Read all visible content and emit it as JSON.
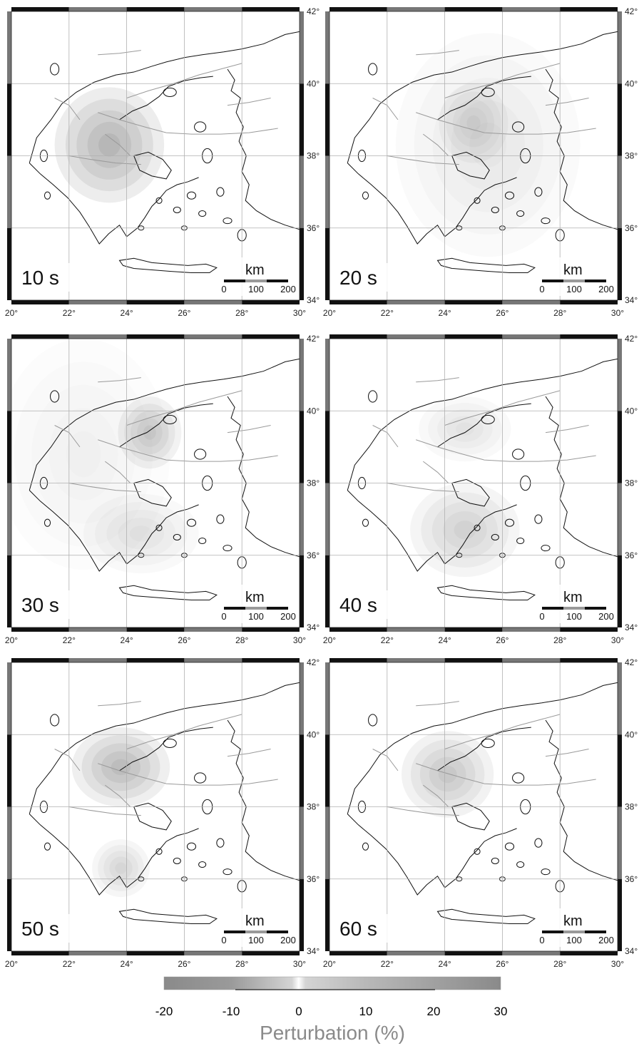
{
  "figure": {
    "lon_ticks": [
      "20°",
      "22°",
      "24°",
      "26°",
      "28°",
      "30°"
    ],
    "lat_ticks": [
      "34°",
      "36°",
      "38°",
      "40°",
      "42°"
    ],
    "extent": {
      "lon": [
        20,
        30
      ],
      "lat": [
        34,
        42
      ]
    },
    "scale_bar": {
      "unit": "km",
      "ticks": [
        "0",
        "100",
        "200"
      ]
    },
    "panels": [
      {
        "label": "10 s",
        "anomalies": [
          {
            "lon": 23.4,
            "lat": 38.3,
            "strength": 1.0,
            "rlon": 1.9,
            "rlat": 1.6
          }
        ]
      },
      {
        "label": "20 s",
        "anomalies": [
          {
            "lon": 25.0,
            "lat": 38.9,
            "strength": 0.45,
            "rlon": 1.2,
            "rlat": 1.1
          },
          {
            "lon": 25.5,
            "lat": 38.3,
            "strength": 0.25,
            "rlon": 3.2,
            "rlat": 3.1
          }
        ]
      },
      {
        "label": "30 s",
        "anomalies": [
          {
            "lon": 24.8,
            "lat": 39.4,
            "strength": 0.75,
            "rlon": 1.1,
            "rlat": 1.0
          },
          {
            "lon": 24.5,
            "lat": 36.6,
            "strength": 0.35,
            "rlon": 2.0,
            "rlat": 1.1
          },
          {
            "lon": 22.5,
            "lat": 38.8,
            "strength": 0.18,
            "rlon": 3.0,
            "rlat": 3.2
          }
        ]
      },
      {
        "label": "40 s",
        "anomalies": [
          {
            "lon": 24.7,
            "lat": 36.7,
            "strength": 0.6,
            "rlon": 1.9,
            "rlat": 1.3
          },
          {
            "lon": 24.7,
            "lat": 39.5,
            "strength": 0.35,
            "rlon": 1.6,
            "rlat": 0.9
          }
        ]
      },
      {
        "label": "50 s",
        "anomalies": [
          {
            "lon": 23.8,
            "lat": 39.1,
            "strength": 0.9,
            "rlon": 1.7,
            "rlat": 1.1
          },
          {
            "lon": 23.8,
            "lat": 36.3,
            "strength": 0.5,
            "rlon": 1.0,
            "rlat": 0.8
          }
        ]
      },
      {
        "label": "60 s",
        "anomalies": [
          {
            "lon": 24.1,
            "lat": 38.9,
            "strength": 0.75,
            "rlon": 1.6,
            "rlat": 1.2
          }
        ]
      }
    ]
  },
  "colorbar": {
    "ticks": [
      "-20",
      "-10",
      "0",
      "10",
      "20",
      "30"
    ],
    "title": "Perturbation (%)"
  },
  "colors": {
    "anomaly": "#6e6e6e",
    "coast": "#111111",
    "fault": "#9a9a9a",
    "grid": "#b0b0b0",
    "frame_dark": "#111111",
    "frame_light": "#ffffff"
  }
}
